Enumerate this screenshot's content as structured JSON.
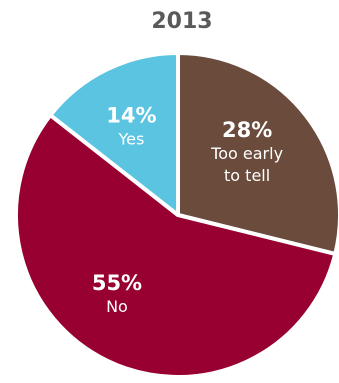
{
  "chart_data": {
    "type": "pie",
    "title": "2013",
    "slices": [
      {
        "label_lines": [
          "Too early",
          "to  tell"
        ],
        "pct_text": "28%",
        "value": 28,
        "color": "#6a4b3c"
      },
      {
        "label_lines": [
          "No"
        ],
        "pct_text": "55%",
        "value": 55,
        "color": "#970031"
      },
      {
        "label_lines": [
          "Yes"
        ],
        "pct_text": "14%",
        "value": 14,
        "color": "#5bc5e1"
      }
    ],
    "start": "12 o'clock",
    "direction": "clockwise"
  }
}
